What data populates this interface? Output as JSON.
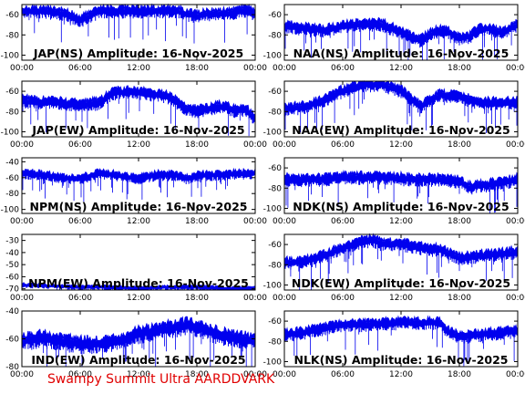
{
  "footer": "Swampy Summit Ultra AARDDVARK",
  "colors": {
    "series": "#0000ee",
    "footer": "#e00000",
    "axis": "#000000"
  },
  "chart_data": [
    {
      "type": "line",
      "title": "JAP(NS) Amplitude: 16-Nov-2025",
      "x_ticks": [
        "00:00",
        "06:00",
        "12:00",
        "18:00",
        "00:00"
      ],
      "y_ticks": [
        "-60",
        "-80",
        "-100"
      ],
      "ylim": [
        -105,
        -50
      ],
      "series": [
        {
          "x": [
            0,
            2,
            4,
            5,
            6,
            7,
            8,
            9,
            10,
            12,
            14,
            16,
            17,
            18,
            19,
            20,
            21,
            22,
            23,
            24
          ],
          "y": [
            -57,
            -57,
            -59,
            -62,
            -66,
            -62,
            -57,
            -57,
            -57,
            -57,
            -57,
            -57,
            -60,
            -62,
            -60,
            -60,
            -59,
            -58,
            -56,
            -60
          ]
        }
      ]
    },
    {
      "type": "line",
      "title": "NAA(NS) Amplitude: 16-Nov-2025",
      "x_ticks": [
        "00:00",
        "06:00",
        "12:00",
        "18:00",
        "00:00"
      ],
      "y_ticks": [
        "-60",
        "-80",
        "-100"
      ],
      "ylim": [
        -105,
        -50
      ],
      "series": [
        {
          "x": [
            0,
            2,
            4,
            6,
            8,
            10,
            12,
            13,
            14,
            15,
            16,
            17,
            18,
            19,
            20,
            21,
            22,
            23,
            24
          ],
          "y": [
            -72,
            -74,
            -76,
            -72,
            -70,
            -70,
            -78,
            -82,
            -86,
            -80,
            -76,
            -78,
            -84,
            -82,
            -76,
            -74,
            -78,
            -76,
            -70
          ]
        }
      ]
    },
    {
      "type": "line",
      "title": "JAP(EW) Amplitude: 16-Nov-2025",
      "x_ticks": [
        "00:00",
        "06:00",
        "12:00",
        "18:00",
        "00:00"
      ],
      "y_ticks": [
        "-60",
        "-80",
        "-100"
      ],
      "ylim": [
        -105,
        -50
      ],
      "series": [
        {
          "x": [
            0,
            2,
            4,
            6,
            8,
            9,
            10,
            12,
            14,
            15,
            16,
            17,
            18,
            19,
            20,
            21,
            22,
            23,
            24
          ],
          "y": [
            -70,
            -71,
            -72,
            -74,
            -72,
            -64,
            -61,
            -62,
            -64,
            -66,
            -72,
            -78,
            -80,
            -78,
            -76,
            -76,
            -80,
            -78,
            -88
          ]
        }
      ]
    },
    {
      "type": "line",
      "title": "NAA(EW) Amplitude: 16-Nov-2025",
      "x_ticks": [
        "00:00",
        "06:00",
        "12:00",
        "18:00",
        "00:00"
      ],
      "y_ticks": [
        "-60",
        "-80",
        "-100"
      ],
      "ylim": [
        -105,
        -50
      ],
      "series": [
        {
          "x": [
            0,
            2,
            4,
            6,
            8,
            10,
            12,
            13,
            14,
            15,
            16,
            18,
            20,
            22,
            24
          ],
          "y": [
            -78,
            -76,
            -70,
            -60,
            -54,
            -54,
            -60,
            -68,
            -76,
            -70,
            -64,
            -66,
            -72,
            -72,
            -72
          ]
        }
      ]
    },
    {
      "type": "line",
      "title": "NPM(NS) Amplitude: 16-Nov-2025",
      "x_ticks": [
        "00:00",
        "06:00",
        "12:00",
        "18:00",
        "00:00"
      ],
      "y_ticks": [
        "-40",
        "-60",
        "-80",
        "-100"
      ],
      "ylim": [
        -105,
        -35
      ],
      "series": [
        {
          "x": [
            0,
            2,
            4,
            6,
            8,
            10,
            12,
            14,
            16,
            17,
            18,
            20,
            22,
            24
          ],
          "y": [
            -55,
            -57,
            -61,
            -62,
            -55,
            -58,
            -62,
            -57,
            -58,
            -62,
            -58,
            -57,
            -56,
            -55
          ]
        }
      ]
    },
    {
      "type": "line",
      "title": "NDK(NS) Amplitude: 16-Nov-2025",
      "x_ticks": [
        "00:00",
        "06:00",
        "12:00",
        "18:00",
        "00:00"
      ],
      "y_ticks": [
        "-60",
        "-80",
        "-100"
      ],
      "ylim": [
        -105,
        -50
      ],
      "series": [
        {
          "x": [
            0,
            2,
            4,
            6,
            8,
            10,
            12,
            14,
            16,
            18,
            19,
            20,
            22,
            24
          ],
          "y": [
            -72,
            -72,
            -72,
            -70,
            -70,
            -70,
            -71,
            -72,
            -72,
            -74,
            -80,
            -78,
            -76,
            -72
          ]
        }
      ]
    },
    {
      "type": "line",
      "title": "NPM(EW) Amplitude: 16-Nov-2025",
      "x_ticks": [
        "00:00",
        "06:00",
        "12:00",
        "18:00",
        "00:00"
      ],
      "y_ticks": [
        "-30",
        "-40",
        "-50",
        "-60",
        "-70"
      ],
      "ylim": [
        -71,
        -25
      ],
      "series": [
        {
          "x": [
            0,
            3,
            6,
            9,
            12,
            15,
            18,
            21,
            24
          ],
          "y": [
            -67,
            -68,
            -69,
            -69,
            -70,
            -69,
            -69,
            -70,
            -70
          ]
        }
      ]
    },
    {
      "type": "line",
      "title": "NDK(EW) Amplitude: 16-Nov-2025",
      "x_ticks": [
        "00:00",
        "06:00",
        "12:00",
        "18:00",
        "00:00"
      ],
      "y_ticks": [
        "-60",
        "-80",
        "-100"
      ],
      "ylim": [
        -105,
        -50
      ],
      "series": [
        {
          "x": [
            0,
            2,
            4,
            6,
            8,
            9,
            10,
            12,
            14,
            16,
            18,
            20,
            22,
            24
          ],
          "y": [
            -78,
            -78,
            -72,
            -64,
            -58,
            -56,
            -60,
            -60,
            -64,
            -66,
            -74,
            -72,
            -70,
            -68
          ]
        }
      ]
    },
    {
      "type": "line",
      "title": "IND(EW) Amplitude: 16-Nov-2025",
      "x_ticks": [
        "00:00",
        "06:00",
        "12:00",
        "18:00",
        "00:00"
      ],
      "y_ticks": [
        "-40",
        "-60",
        "-80"
      ],
      "ylim": [
        -80,
        -40
      ],
      "series": [
        {
          "x": [
            0,
            2,
            4,
            6,
            8,
            10,
            12,
            14,
            16,
            17,
            18,
            20,
            22,
            24
          ],
          "y": [
            -62,
            -60,
            -62,
            -64,
            -64,
            -62,
            -57,
            -54,
            -52,
            -50,
            -52,
            -57,
            -60,
            -62
          ]
        }
      ]
    },
    {
      "type": "line",
      "title": "NLK(NS) Amplitude: 16-Nov-2025",
      "x_ticks": [
        "00:00",
        "06:00",
        "12:00",
        "18:00",
        "00:00"
      ],
      "y_ticks": [
        "-60",
        "-80",
        "-100"
      ],
      "ylim": [
        -105,
        -50
      ],
      "series": [
        {
          "x": [
            0,
            2,
            4,
            6,
            8,
            10,
            12,
            14,
            16,
            17,
            18,
            20,
            22,
            24
          ],
          "y": [
            -74,
            -72,
            -68,
            -64,
            -64,
            -63,
            -62,
            -62,
            -62,
            -72,
            -76,
            -74,
            -72,
            -70
          ]
        }
      ]
    }
  ]
}
